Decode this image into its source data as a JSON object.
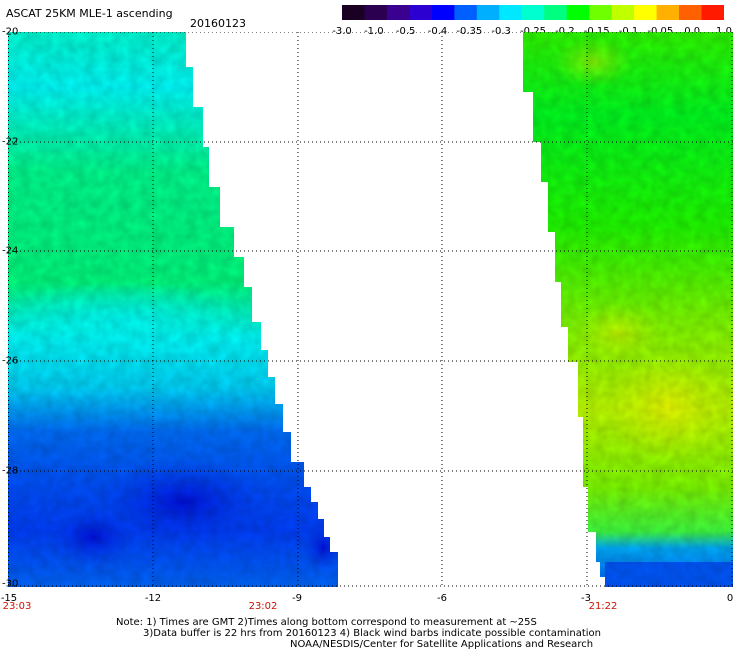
{
  "header": {
    "title": "ASCAT 25KM MLE-1 ascending",
    "date": "20160123"
  },
  "colorbar": {
    "colors": [
      "#1a0022",
      "#2b0050",
      "#3a0090",
      "#2b00d0",
      "#0000ff",
      "#0060ff",
      "#00b0ff",
      "#00e8ff",
      "#00ffd0",
      "#00ff80",
      "#00ff00",
      "#70ff00",
      "#c0ff00",
      "#ffff00",
      "#ffb000",
      "#ff6000",
      "#ff1a00"
    ],
    "labels": [
      "-3.0",
      "-1.0",
      "-0.5",
      "-0.4",
      "-0.35",
      "-0.3",
      "-0.25",
      "-0.2",
      "-0.15",
      "-0.1",
      "-0.05",
      "0.0",
      "1.0"
    ]
  },
  "axes": {
    "y_labels": [
      "-20",
      "-22",
      "-24",
      "-26",
      "-28",
      "-30"
    ],
    "x_labels": [
      "-15",
      "-12",
      "-9",
      "-6",
      "-3",
      "0"
    ],
    "time_labels": [
      "23:03",
      "23:02",
      "21:22"
    ]
  },
  "notes": {
    "line1": "Note: 1) Times are GMT 2)Times along bottom correspond to measurement at ~25S",
    "line2": "3)Data buffer is 22 hrs from 20160123 4) Black wind barbs indicate possible contamination",
    "line3": "NOAA/NESDIS/Center for Satellite Applications and Research"
  }
}
